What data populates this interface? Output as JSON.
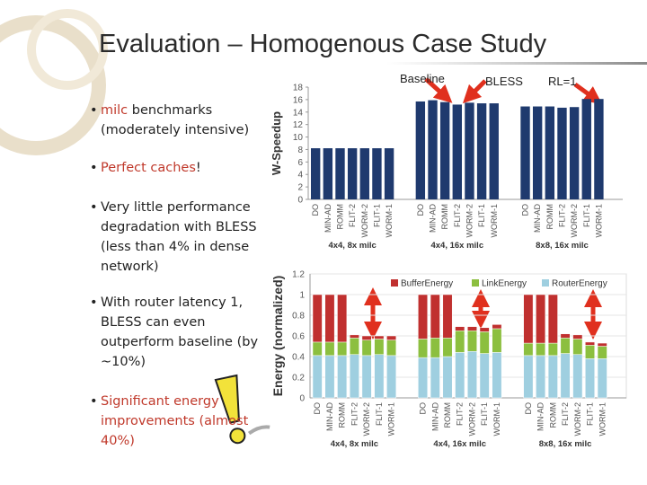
{
  "slide": {
    "title": "Evaluation – Homogenous Case Study",
    "bullets": [
      [
        {
          "text": "milc",
          "color": "#c0392b"
        },
        {
          "text": " benchmarks (moderately intensive)"
        }
      ],
      [
        {
          "text": "Perfect caches",
          "color": "#c0392b"
        },
        {
          "text": "!"
        }
      ],
      [
        {
          "text": "Very little performance degradation with BLESS (less than 4% in dense network)"
        }
      ],
      [
        {
          "text": "With router latency 1, BLESS can even outperform baseline (by ~10%)"
        }
      ],
      [
        {
          "text": "Significant energy improvements (almost 40%)",
          "color": "#c0392b"
        }
      ]
    ]
  },
  "chart_data": [
    {
      "type": "bar",
      "y_label": "W-Speedup",
      "color": "#1f3a6e",
      "ylim": [
        0,
        18
      ],
      "yticks": [
        0,
        2,
        4,
        6,
        8,
        10,
        12,
        14,
        16,
        18
      ],
      "annotations": [
        "Baseline",
        "BLESS",
        "RL=1"
      ],
      "groups": [
        {
          "name": "4x4, 8x milc",
          "categories": [
            "DO",
            "MIN-AD",
            "ROMM",
            "FLIT-2",
            "WORM-2",
            "FLIT-1",
            "WORM-1"
          ],
          "values": [
            8.2,
            8.2,
            8.2,
            8.2,
            8.2,
            8.2,
            8.2
          ]
        },
        {
          "name": "4x4, 16x milc",
          "categories": [
            "DO",
            "MIN-AD",
            "ROMM",
            "FLIT-2",
            "WORM-2",
            "FLIT-1",
            "WORM-1"
          ],
          "values": [
            15.7,
            15.9,
            15.6,
            15.2,
            15.5,
            15.4,
            15.4
          ]
        },
        {
          "name": "8x8, 16x milc",
          "categories": [
            "DO",
            "MIN-AD",
            "ROMM",
            "FLIT-2",
            "WORM-2",
            "FLIT-1",
            "WORM-1"
          ],
          "values": [
            14.9,
            14.9,
            14.9,
            14.7,
            14.8,
            16.1,
            16.1
          ]
        }
      ]
    },
    {
      "type": "stacked_bar",
      "y_label": "Energy (normalized)",
      "legend": "top-right",
      "grid": true,
      "ylim": [
        0,
        1.2
      ],
      "yticks": [
        0,
        0.2,
        0.4,
        0.6,
        0.8,
        1,
        1.2
      ],
      "groups": [
        {
          "name": "4x4, 8x milc",
          "categories": [
            "DO",
            "MIN-AD",
            "ROMM",
            "FLIT-2",
            "WORM-2",
            "FLIT-1",
            "WORM-1"
          ]
        },
        {
          "name": "4x4, 16x milc",
          "categories": [
            "DO",
            "MIN-AD",
            "ROMM",
            "FLIT-2",
            "WORM-2",
            "FLIT-1",
            "WORM-1"
          ]
        },
        {
          "name": "8x8, 16x milc",
          "categories": [
            "DO",
            "MIN-AD",
            "ROMM",
            "FLIT-2",
            "WORM-2",
            "FLIT-1",
            "WORM-1"
          ]
        }
      ],
      "series": [
        {
          "name": "BufferEnergy",
          "color": "#c0302f",
          "values": [
            [
              0.46,
              0.46,
              0.46,
              0.03,
              0.04,
              0.03,
              0.04
            ],
            [
              0.43,
              0.42,
              0.42,
              0.04,
              0.04,
              0.04,
              0.04
            ],
            [
              0.47,
              0.47,
              0.47,
              0.04,
              0.04,
              0.03,
              0.03
            ]
          ]
        },
        {
          "name": "LinkEnergy",
          "color": "#8cbf3f",
          "values": [
            [
              0.13,
              0.13,
              0.13,
              0.16,
              0.15,
              0.15,
              0.15
            ],
            [
              0.18,
              0.19,
              0.18,
              0.21,
              0.2,
              0.21,
              0.23
            ],
            [
              0.12,
              0.12,
              0.12,
              0.15,
              0.15,
              0.13,
              0.12
            ]
          ]
        },
        {
          "name": "RouterEnergy",
          "color": "#9fcfe0",
          "values": [
            [
              0.41,
              0.41,
              0.41,
              0.42,
              0.41,
              0.42,
              0.41
            ],
            [
              0.39,
              0.39,
              0.4,
              0.44,
              0.45,
              0.43,
              0.44
            ],
            [
              0.41,
              0.41,
              0.41,
              0.43,
              0.42,
              0.38,
              0.38
            ]
          ]
        }
      ]
    }
  ]
}
